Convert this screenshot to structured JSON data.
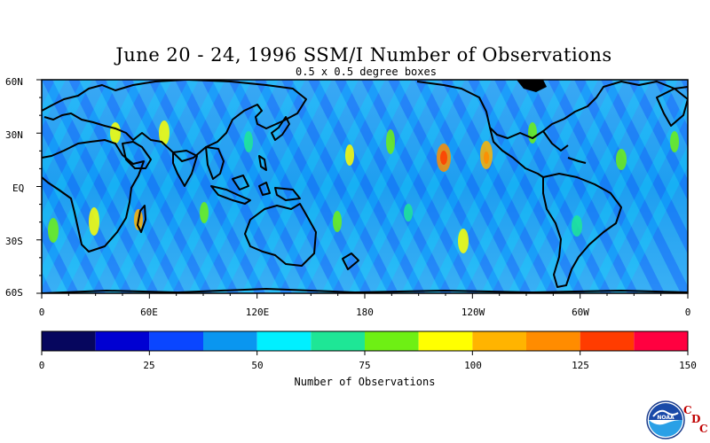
{
  "header": {
    "title": "June 20 - 24, 1996 SSM/I Number of Observations",
    "subtitle": "0.5 x 0.5 degree boxes"
  },
  "map": {
    "lat_labels": [
      "60N",
      "30N",
      "EQ",
      "30S",
      "60S"
    ],
    "lon_labels": [
      "0",
      "60E",
      "120E",
      "180",
      "120W",
      "60W",
      "0"
    ],
    "lat_range": [
      -60,
      60
    ],
    "lon_range": [
      0,
      360
    ]
  },
  "colorbar": {
    "title": "Number of Observations",
    "tick_labels": [
      "0",
      "25",
      "50",
      "75",
      "100",
      "125",
      "150"
    ],
    "range": [
      0,
      150
    ],
    "colors": [
      "#06065e",
      "#0000d2",
      "#0a46ff",
      "#0a96f0",
      "#00f0ff",
      "#1ee696",
      "#6ef014",
      "#ffff00",
      "#ffb400",
      "#ff8c00",
      "#ff3c00",
      "#ff0040"
    ]
  },
  "logo": {
    "text": "NOAA",
    "cdc_letters": [
      "C",
      "D",
      "C"
    ]
  }
}
